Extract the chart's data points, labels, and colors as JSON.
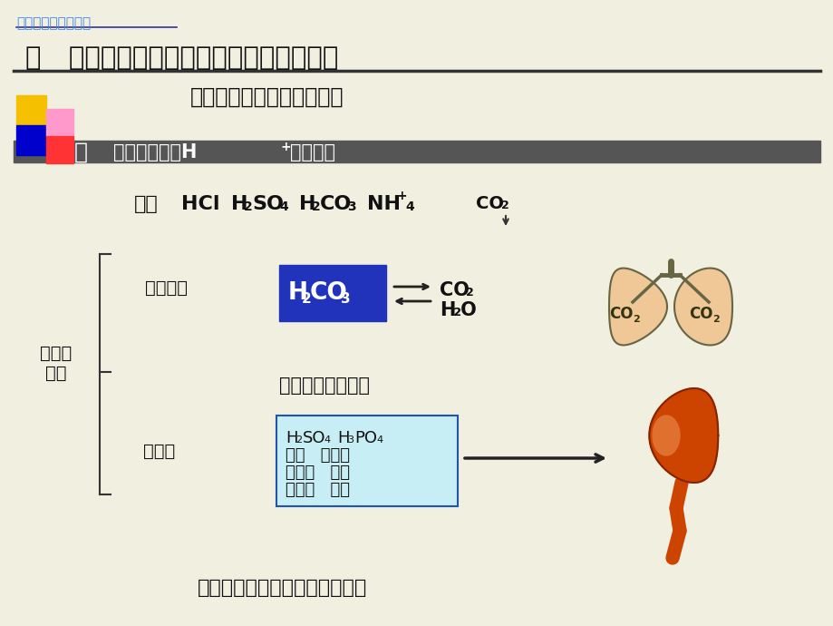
{
  "bg_color": "#f0efe0",
  "title_small": "病理学与病理生理学",
  "title_main": "一   体液酸碱物质的来源及酸碱平衡的调节",
  "subtitle": "（一）体液酸碱物质的来源",
  "acid_label": "酸",
  "acid_def": "能提供质子（H+）的物质",
  "lei_xing": "类型及\n来源",
  "hui_fa": "挥发性酸",
  "ti_nei": "体内物质代谢产生",
  "gu_ding": "固定酸",
  "food_text": "食物在体内转化或经氧化后生成",
  "sq_yellow": "#f5c000",
  "sq_blue": "#0000cc",
  "sq_pink": "#ff99cc",
  "sq_red": "#ff3333",
  "title_color": "#4488ee",
  "bar_color": "#555555",
  "blue_box_color": "#2233bb",
  "light_blue_box": "#c8eef5",
  "lung_fill": "#f0c898",
  "lung_outline": "#666644",
  "kidney_color": "#cc4400",
  "arrow_color": "#333333"
}
